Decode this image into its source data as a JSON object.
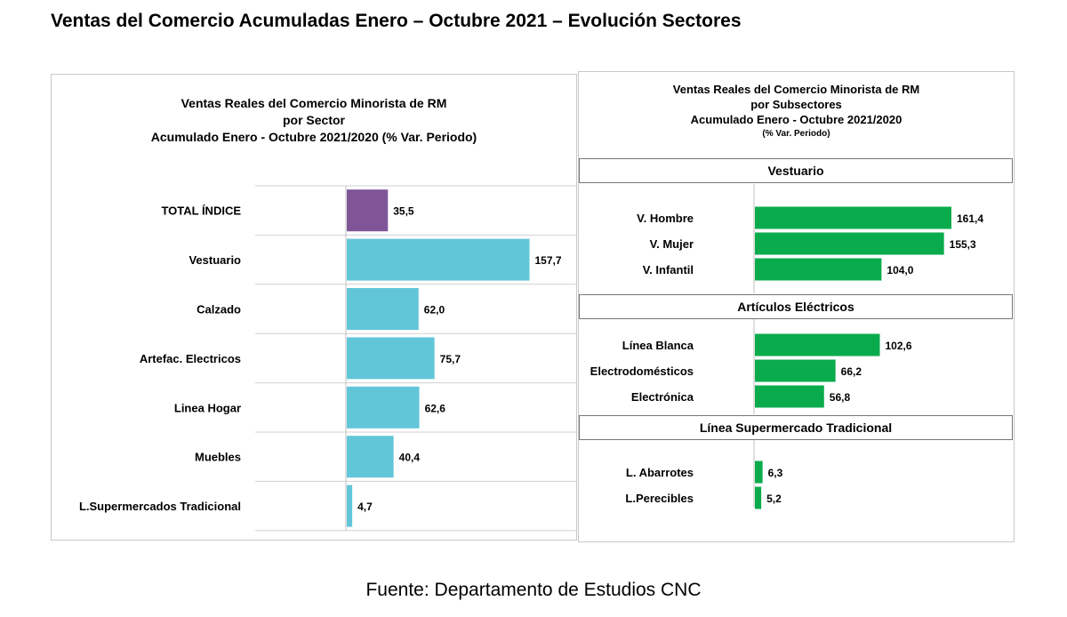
{
  "title": "Ventas del Comercio Acumuladas Enero – Octubre 2021 – Evolución Sectores",
  "source": "Fuente: Departamento de Estudios CNC",
  "colors": {
    "total": "#7f5597",
    "sector": "#62c6d9",
    "subsector": "#0aab4c"
  },
  "chart_data": [
    {
      "type": "bar",
      "orientation": "horizontal",
      "title_lines": [
        "Ventas Reales del Comercio Minorista de RM",
        "por Sector",
        "Acumulado Enero - Octubre 2021/2020 (% Var. Periodo)"
      ],
      "categories": [
        "TOTAL ÍNDICE",
        "Vestuario",
        "Calzado",
        "Artefac. Electricos",
        "Linea Hogar",
        "Muebles",
        "L.Supermercados Tradicional"
      ],
      "values": [
        35.5,
        157.7,
        62.0,
        75.7,
        62.6,
        40.4,
        4.7
      ],
      "value_labels": [
        "35,5",
        "157,7",
        "62,0",
        "75,7",
        "62,6",
        "40,4",
        "4,7"
      ],
      "bar_colors": [
        "#7f5597",
        "#62c6d9",
        "#62c6d9",
        "#62c6d9",
        "#62c6d9",
        "#62c6d9",
        "#62c6d9"
      ],
      "grid": true
    },
    {
      "type": "bar",
      "orientation": "horizontal",
      "title_lines": [
        "Ventas Reales del Comercio Minorista de RM",
        "por Subsectores",
        "Acumulado Enero - Octubre 2021/2020",
        "(% Var. Periodo)"
      ],
      "groups": [
        {
          "name": "Vestuario",
          "categories": [
            "V. Hombre",
            "V. Mujer",
            "V. Infantil"
          ],
          "values": [
            161.4,
            155.3,
            104.0
          ],
          "value_labels": [
            "161,4",
            "155,3",
            "104,0"
          ]
        },
        {
          "name": "Artículos Eléctricos",
          "categories": [
            "Línea Blanca",
            "Electrodomésticos",
            "Electrónica"
          ],
          "values": [
            102.6,
            66.2,
            56.8
          ],
          "value_labels": [
            "102,6",
            "66,2",
            "56,8"
          ]
        },
        {
          "name": "Línea  Supermercado Tradicional",
          "categories": [
            "L. Abarrotes",
            "L.Perecibles"
          ],
          "values": [
            6.3,
            5.2
          ],
          "value_labels": [
            "6,3",
            "5,2"
          ]
        }
      ],
      "bar_color": "#0aab4c"
    }
  ]
}
